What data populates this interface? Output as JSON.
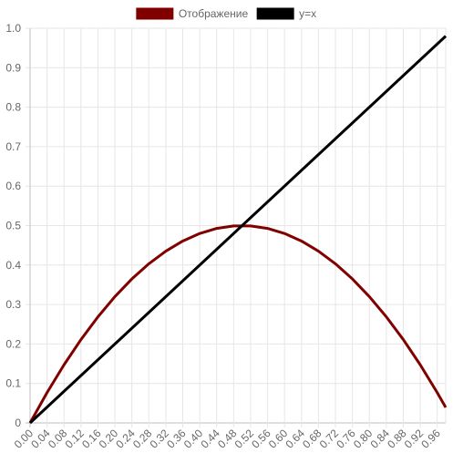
{
  "chart_data": {
    "type": "line",
    "title": "",
    "xlabel": "",
    "ylabel": "",
    "legend_position": "top",
    "grid": true,
    "xlim": [
      0,
      0.98
    ],
    "ylim": [
      0,
      1.0
    ],
    "x_ticks": [
      "0.00",
      "0.04",
      "0.08",
      "0.12",
      "0.16",
      "0.20",
      "0.24",
      "0.28",
      "0.32",
      "0.36",
      "0.40",
      "0.44",
      "0.48",
      "0.52",
      "0.56",
      "0.60",
      "0.64",
      "0.68",
      "0.72",
      "0.76",
      "0.80",
      "0.84",
      "0.88",
      "0.92",
      "0.96"
    ],
    "y_ticks": [
      "0",
      "0.1",
      "0.2",
      "0.3",
      "0.4",
      "0.5",
      "0.6",
      "0.7",
      "0.8",
      "0.9",
      "1.0"
    ],
    "series": [
      {
        "name": "Отображение",
        "color": "#800000",
        "x": [
          0.0,
          0.04,
          0.08,
          0.12,
          0.16,
          0.2,
          0.24,
          0.28,
          0.32,
          0.36,
          0.4,
          0.44,
          0.48,
          0.52,
          0.56,
          0.6,
          0.64,
          0.68,
          0.72,
          0.76,
          0.8,
          0.84,
          0.88,
          0.92,
          0.96,
          0.98
        ],
        "values": [
          0.0,
          0.0768,
          0.1472,
          0.2112,
          0.2688,
          0.32,
          0.3648,
          0.4032,
          0.4352,
          0.4608,
          0.48,
          0.4928,
          0.4992,
          0.4992,
          0.4928,
          0.48,
          0.4608,
          0.4352,
          0.4032,
          0.3648,
          0.32,
          0.2688,
          0.2112,
          0.1472,
          0.0768,
          0.0392
        ]
      },
      {
        "name": "y=x",
        "color": "#000000",
        "x": [
          0.0,
          0.98
        ],
        "values": [
          0.0,
          0.98
        ]
      }
    ]
  }
}
